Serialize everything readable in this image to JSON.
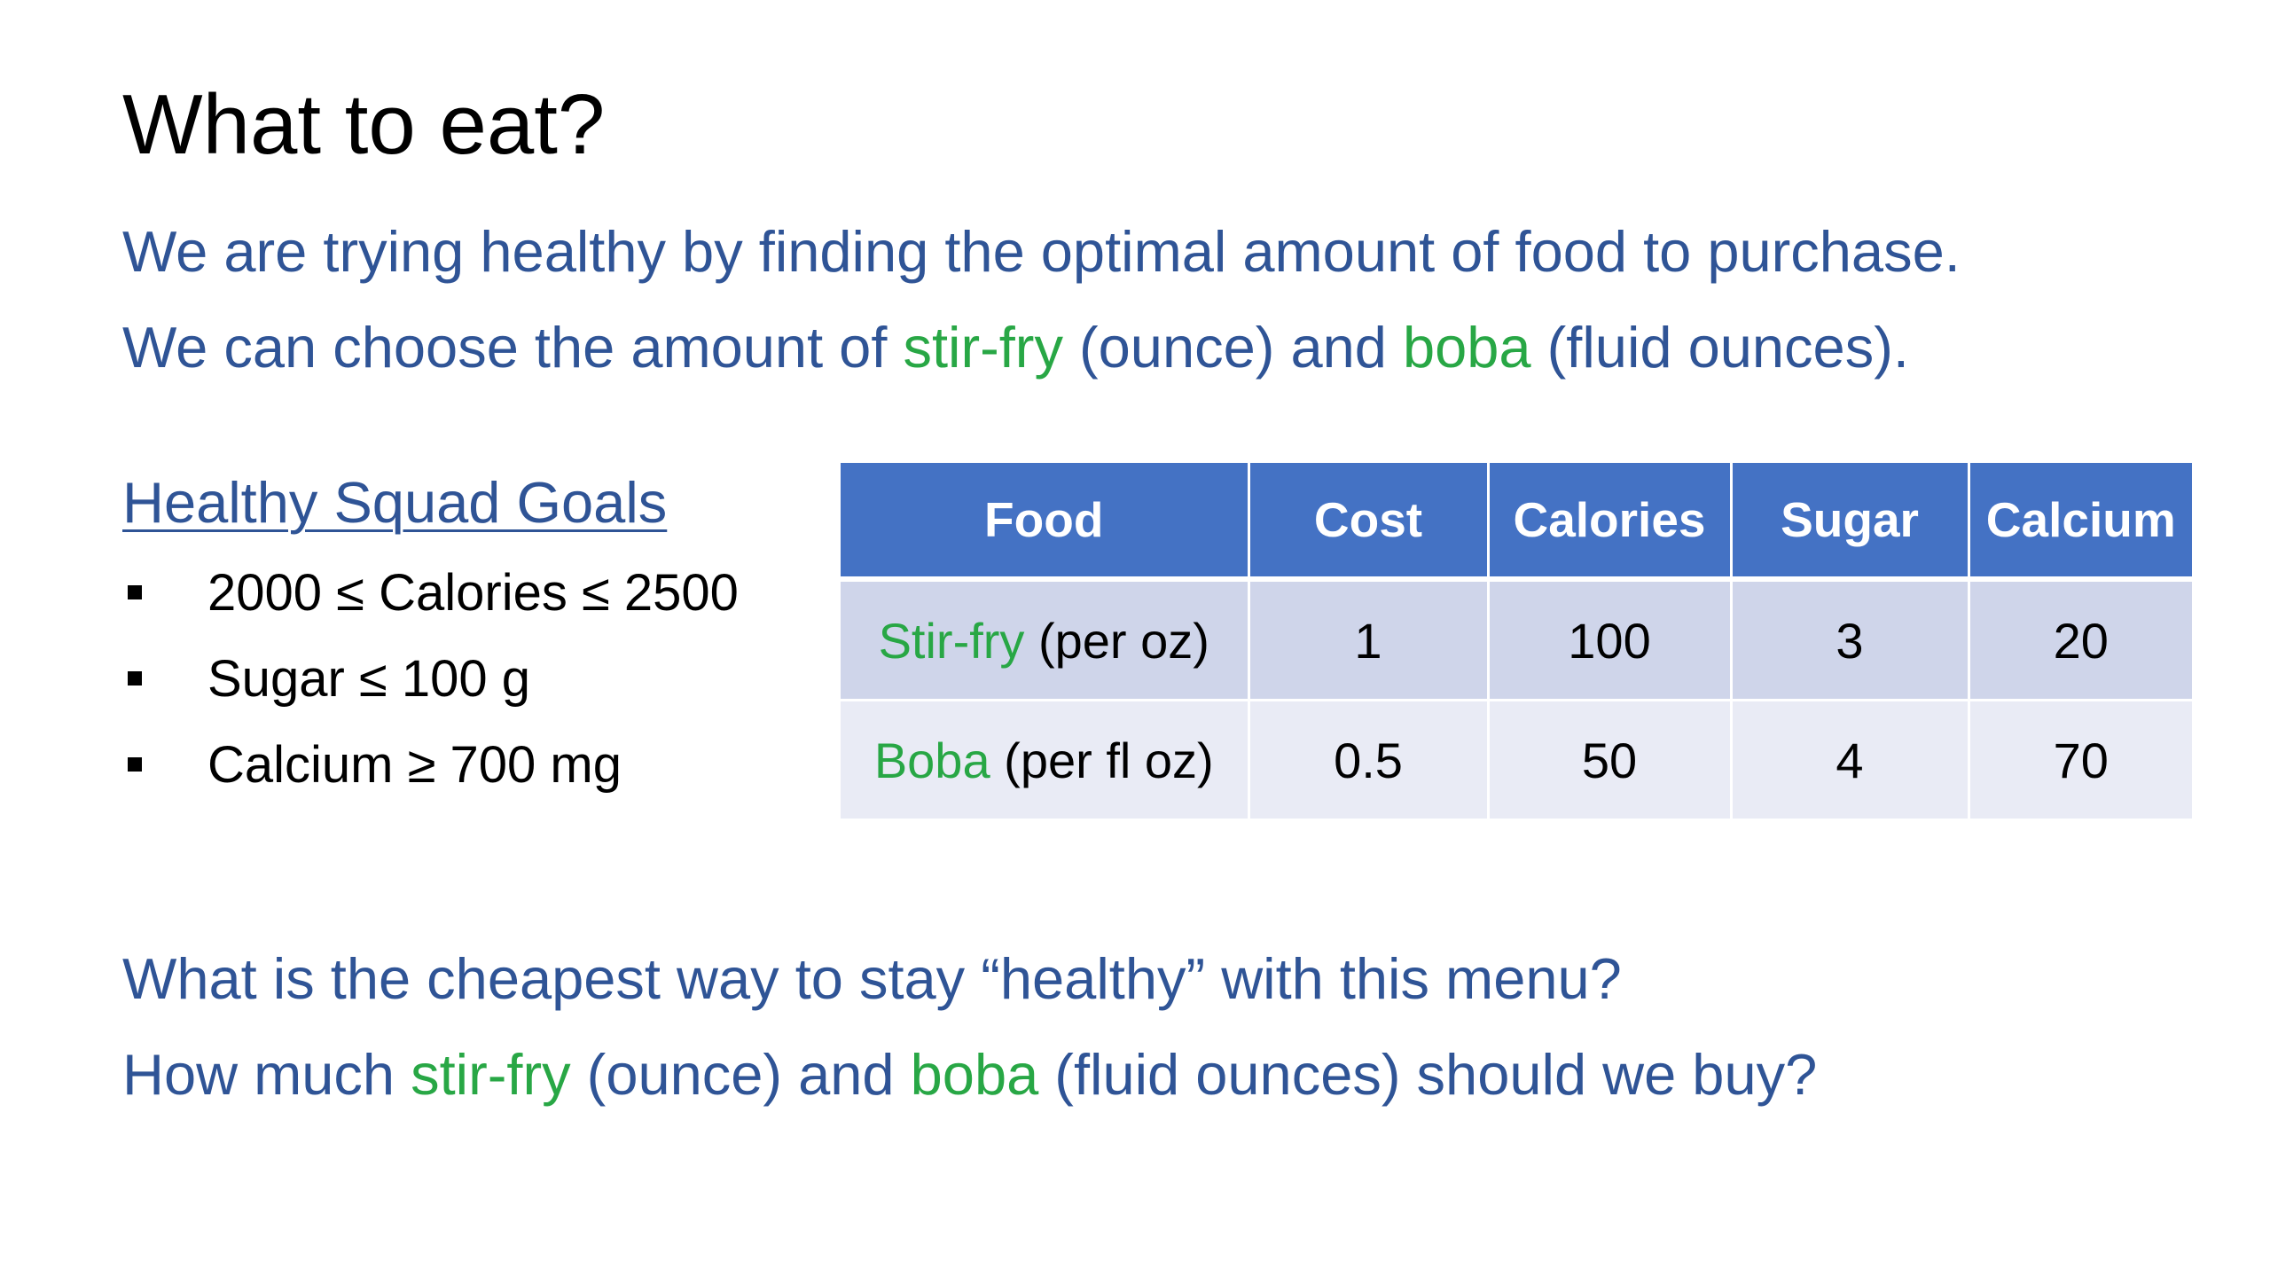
{
  "slide": {
    "title": "What to eat?",
    "intro": {
      "line1": "We are trying healthy by finding the optimal amount of food to purchase.",
      "line2_prefix": "We can choose the amount of ",
      "line2_food1": "stir-fry",
      "line2_middle": " (ounce) and ",
      "line2_food2": "boba",
      "line2_suffix": " (fluid ounces)."
    },
    "goals": {
      "heading": "Healthy Squad Goals",
      "items": [
        "2000 ≤ Calories ≤ 2500",
        "Sugar ≤ 100 g",
        "Calcium ≥ 700 mg"
      ]
    },
    "table": {
      "headers": [
        "Food",
        "Cost",
        "Calories",
        "Sugar",
        "Calcium"
      ],
      "rows": [
        {
          "name": "Stir-fry",
          "unit": " (per oz)",
          "cost": "1",
          "calories": "100",
          "sugar": "3",
          "calcium": "20"
        },
        {
          "name": "Boba",
          "unit": " (per fl oz)",
          "cost": "0.5",
          "calories": "50",
          "sugar": "4",
          "calcium": "70"
        }
      ]
    },
    "questions": {
      "line1": "What is the cheapest way to stay “healthy” with this menu?",
      "line2_prefix": "How much ",
      "line2_food1": "stir-fry",
      "line2_middle": " (ounce) and ",
      "line2_food2": "boba",
      "line2_suffix": " (fluid ounces) should we buy?"
    },
    "colors": {
      "text_blue": "#2f5496",
      "highlight_green": "#28a745",
      "header_blue": "#4472c4",
      "row_dark": "#cfd5ea",
      "row_light": "#e9ebf5"
    }
  }
}
